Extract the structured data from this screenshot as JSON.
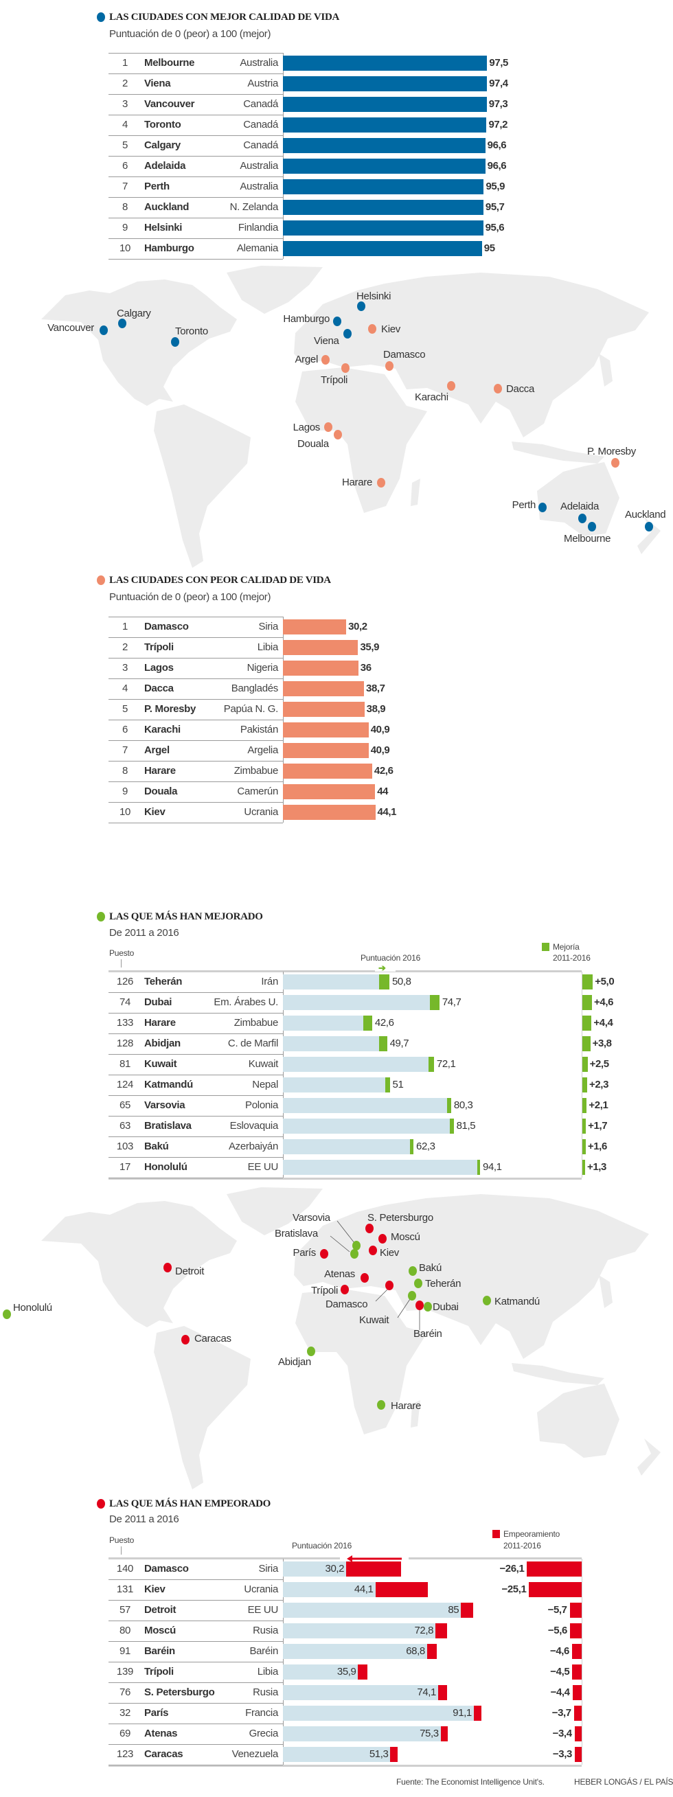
{
  "colors": {
    "best": "#0069a3",
    "worst": "#ef8b6b",
    "improved": "#76b82a",
    "worsened": "#e2001a",
    "score_bar": "#d0e3eb",
    "land": "#ececec",
    "text": "#333333"
  },
  "best": {
    "title": "LAS CIUDADES CON MEJOR CALIDAD DE VIDA",
    "subtitle": "Puntuación de 0 (peor) a 100 (mejor)",
    "rows": [
      {
        "rank": "1",
        "city": "Melbourne",
        "country": "Australia",
        "value": "97,5"
      },
      {
        "rank": "2",
        "city": "Viena",
        "country": "Austria",
        "value": "97,4"
      },
      {
        "rank": "3",
        "city": "Vancouver",
        "country": "Canadá",
        "value": "97,3"
      },
      {
        "rank": "4",
        "city": "Toronto",
        "country": "Canadá",
        "value": "97,2"
      },
      {
        "rank": "5",
        "city": "Calgary",
        "country": "Canadá",
        "value": "96,6"
      },
      {
        "rank": "6",
        "city": "Adelaida",
        "country": "Australia",
        "value": "96,6"
      },
      {
        "rank": "7",
        "city": "Perth",
        "country": "Australia",
        "value": "95,9"
      },
      {
        "rank": "8",
        "city": "Auckland",
        "country": "N. Zelanda",
        "value": "95,7"
      },
      {
        "rank": "9",
        "city": "Helsinki",
        "country": "Finlandia",
        "value": "95,6"
      },
      {
        "rank": "10",
        "city": "Hamburgo",
        "country": "Alemania",
        "value": "95"
      }
    ]
  },
  "map_best_worst": {
    "cities": [
      {
        "name": "Vancouver",
        "group": "best"
      },
      {
        "name": "Calgary",
        "group": "best"
      },
      {
        "name": "Toronto",
        "group": "best"
      },
      {
        "name": "Helsinki",
        "group": "best"
      },
      {
        "name": "Hamburgo",
        "group": "best"
      },
      {
        "name": "Viena",
        "group": "best"
      },
      {
        "name": "Kiev",
        "group": "worst"
      },
      {
        "name": "Argel",
        "group": "worst"
      },
      {
        "name": "Trípoli",
        "group": "worst"
      },
      {
        "name": "Damasco",
        "group": "worst"
      },
      {
        "name": "Karachi",
        "group": "worst"
      },
      {
        "name": "Dacca",
        "group": "worst"
      },
      {
        "name": "Lagos",
        "group": "worst"
      },
      {
        "name": "Douala",
        "group": "worst"
      },
      {
        "name": "Harare",
        "group": "worst"
      },
      {
        "name": "P. Moresby",
        "group": "worst"
      },
      {
        "name": "Perth",
        "group": "best"
      },
      {
        "name": "Adelaida",
        "group": "best"
      },
      {
        "name": "Melbourne",
        "group": "best"
      },
      {
        "name": "Auckland",
        "group": "best"
      }
    ]
  },
  "worst": {
    "title": "LAS CIUDADES CON PEOR CALIDAD DE VIDA",
    "subtitle": "Puntuación de 0 (peor) a 100 (mejor)",
    "rows": [
      {
        "rank": "1",
        "city": "Damasco",
        "country": "Siria",
        "value": "30,2"
      },
      {
        "rank": "2",
        "city": "Trípoli",
        "country": "Libia",
        "value": "35,9"
      },
      {
        "rank": "3",
        "city": "Lagos",
        "country": "Nigeria",
        "value": "36"
      },
      {
        "rank": "4",
        "city": "Dacca",
        "country": "Bangladés",
        "value": "38,7"
      },
      {
        "rank": "5",
        "city": "P. Moresby",
        "country": "Papúa N. G.",
        "value": "38,9"
      },
      {
        "rank": "6",
        "city": "Karachi",
        "country": "Pakistán",
        "value": "40,9"
      },
      {
        "rank": "7",
        "city": "Argel",
        "country": "Argelia",
        "value": "40,9"
      },
      {
        "rank": "8",
        "city": "Harare",
        "country": "Zimbabue",
        "value": "42,6"
      },
      {
        "rank": "9",
        "city": "Douala",
        "country": "Camerún",
        "value": "44"
      },
      {
        "rank": "10",
        "city": "Kiev",
        "country": "Ucrania",
        "value": "44,1"
      }
    ]
  },
  "improved": {
    "title": "LAS QUE MÁS HAN MEJORADO",
    "subtitle": "De 2011 a 2016",
    "rank_header": "Puesto",
    "score_header": "Puntuación 2016",
    "legend": [
      "Mejoría",
      "2011-2016"
    ],
    "rows": [
      {
        "rank": "126",
        "city": "Teherán",
        "country": "Irán",
        "score": "50,8",
        "change": "+5,0"
      },
      {
        "rank": "74",
        "city": "Dubai",
        "country": "Em. Árabes U.",
        "score": "74,7",
        "change": "+4,6"
      },
      {
        "rank": "133",
        "city": "Harare",
        "country": "Zimbabue",
        "score": "42,6",
        "change": "+4,4"
      },
      {
        "rank": "128",
        "city": "Abidjan",
        "country": "C. de Marfil",
        "score": "49,7",
        "change": "+3,8"
      },
      {
        "rank": "81",
        "city": "Kuwait",
        "country": "Kuwait",
        "score": "72,1",
        "change": "+2,5"
      },
      {
        "rank": "124",
        "city": "Katmandú",
        "country": "Nepal",
        "score": "51",
        "change": "+2,3"
      },
      {
        "rank": "65",
        "city": "Varsovia",
        "country": "Polonia",
        "score": "80,3",
        "change": "+2,1"
      },
      {
        "rank": "63",
        "city": "Bratislava",
        "country": "Eslovaquia",
        "score": "81,5",
        "change": "+1,7"
      },
      {
        "rank": "103",
        "city": "Bakú",
        "country": "Azerbaiyán",
        "score": "62,3",
        "change": "+1,6"
      },
      {
        "rank": "17",
        "city": "Honolulú",
        "country": "EE UU",
        "score": "94,1",
        "change": "+1,3"
      }
    ]
  },
  "map_changes": {
    "cities": [
      {
        "name": "S. Petersburgo",
        "group": "worsened"
      },
      {
        "name": "Moscú",
        "group": "worsened"
      },
      {
        "name": "Kiev",
        "group": "worsened"
      },
      {
        "name": "París",
        "group": "worsened"
      },
      {
        "name": "Varsovia",
        "group": "improved"
      },
      {
        "name": "Bratislava",
        "group": "improved"
      },
      {
        "name": "Detroit",
        "group": "worsened"
      },
      {
        "name": "Atenas",
        "group": "worsened"
      },
      {
        "name": "Trípoli",
        "group": "worsened"
      },
      {
        "name": "Damasco",
        "group": "worsened"
      },
      {
        "name": "Bakú",
        "group": "improved"
      },
      {
        "name": "Teherán",
        "group": "improved"
      },
      {
        "name": "Kuwait",
        "group": "improved"
      },
      {
        "name": "Baréin",
        "group": "worsened"
      },
      {
        "name": "Dubai",
        "group": "improved"
      },
      {
        "name": "Katmandú",
        "group": "improved"
      },
      {
        "name": "Honolulú",
        "group": "improved"
      },
      {
        "name": "Caracas",
        "group": "worsened"
      },
      {
        "name": "Abidjan",
        "group": "improved"
      },
      {
        "name": "Harare",
        "group": "improved"
      }
    ]
  },
  "worsened": {
    "title": "LAS QUE MÁS HAN EMPEORADO",
    "subtitle": "De 2011 a 2016",
    "rank_header": "Puesto",
    "score_header": "Puntuación 2016",
    "legend": [
      "Empeoramiento",
      "2011-2016"
    ],
    "rows": [
      {
        "rank": "140",
        "city": "Damasco",
        "country": "Siria",
        "score": "30,2",
        "change": "−26,1"
      },
      {
        "rank": "131",
        "city": "Kiev",
        "country": "Ucrania",
        "score": "44,1",
        "change": "−25,1"
      },
      {
        "rank": "57",
        "city": "Detroit",
        "country": "EE UU",
        "score": "85",
        "change": "−5,7"
      },
      {
        "rank": "80",
        "city": "Moscú",
        "country": "Rusia",
        "score": "72,8",
        "change": "−5,6"
      },
      {
        "rank": "91",
        "city": "Baréin",
        "country": "Baréin",
        "score": "68,8",
        "change": "−4,6"
      },
      {
        "rank": "139",
        "city": "Trípoli",
        "country": "Libia",
        "score": "35,9",
        "change": "−4,5"
      },
      {
        "rank": "76",
        "city": "S. Petersburgo",
        "country": "Rusia",
        "score": "74,1",
        "change": "−4,4"
      },
      {
        "rank": "32",
        "city": "París",
        "country": "Francia",
        "score": "91,1",
        "change": "−3,7"
      },
      {
        "rank": "69",
        "city": "Atenas",
        "country": "Grecia",
        "score": "75,3",
        "change": "−3,4"
      },
      {
        "rank": "123",
        "city": "Caracas",
        "country": "Venezuela",
        "score": "51,3",
        "change": "−3,3"
      }
    ]
  },
  "footer": {
    "source": "Fuente: The Economist Intelligence Unit's.",
    "credit": "HEBER LONGÁS / EL PAÍS"
  }
}
